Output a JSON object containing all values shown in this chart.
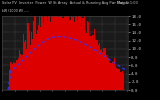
{
  "title_left": "Solar PV  Inverter  Power  W St Array  Actual & Running Avg Pwr Output",
  "title_right": "May 3  1:03",
  "subtitle": "kW (1000 W) ----",
  "bg_color": "#000000",
  "plot_bg_color": "#1a1a1a",
  "bar_color": "#dd0000",
  "avg_line_color": "#3333ff",
  "grid_color": "#888888",
  "text_color": "#cccccc",
  "ylim": [
    0,
    18
  ],
  "yticks": [
    0,
    2,
    4,
    6,
    8,
    10,
    12,
    14,
    16,
    18
  ],
  "ylabels": [
    "0.0",
    "2.0",
    "4.0",
    "6.0",
    "8.0",
    "10.0",
    "12.0",
    "14.0",
    "16.0",
    "18.0"
  ],
  "num_bars": 108,
  "bar_peak_index": 52,
  "bar_peak_value": 17.2,
  "avg_peak_index": 48,
  "avg_peak_value": 13.0
}
